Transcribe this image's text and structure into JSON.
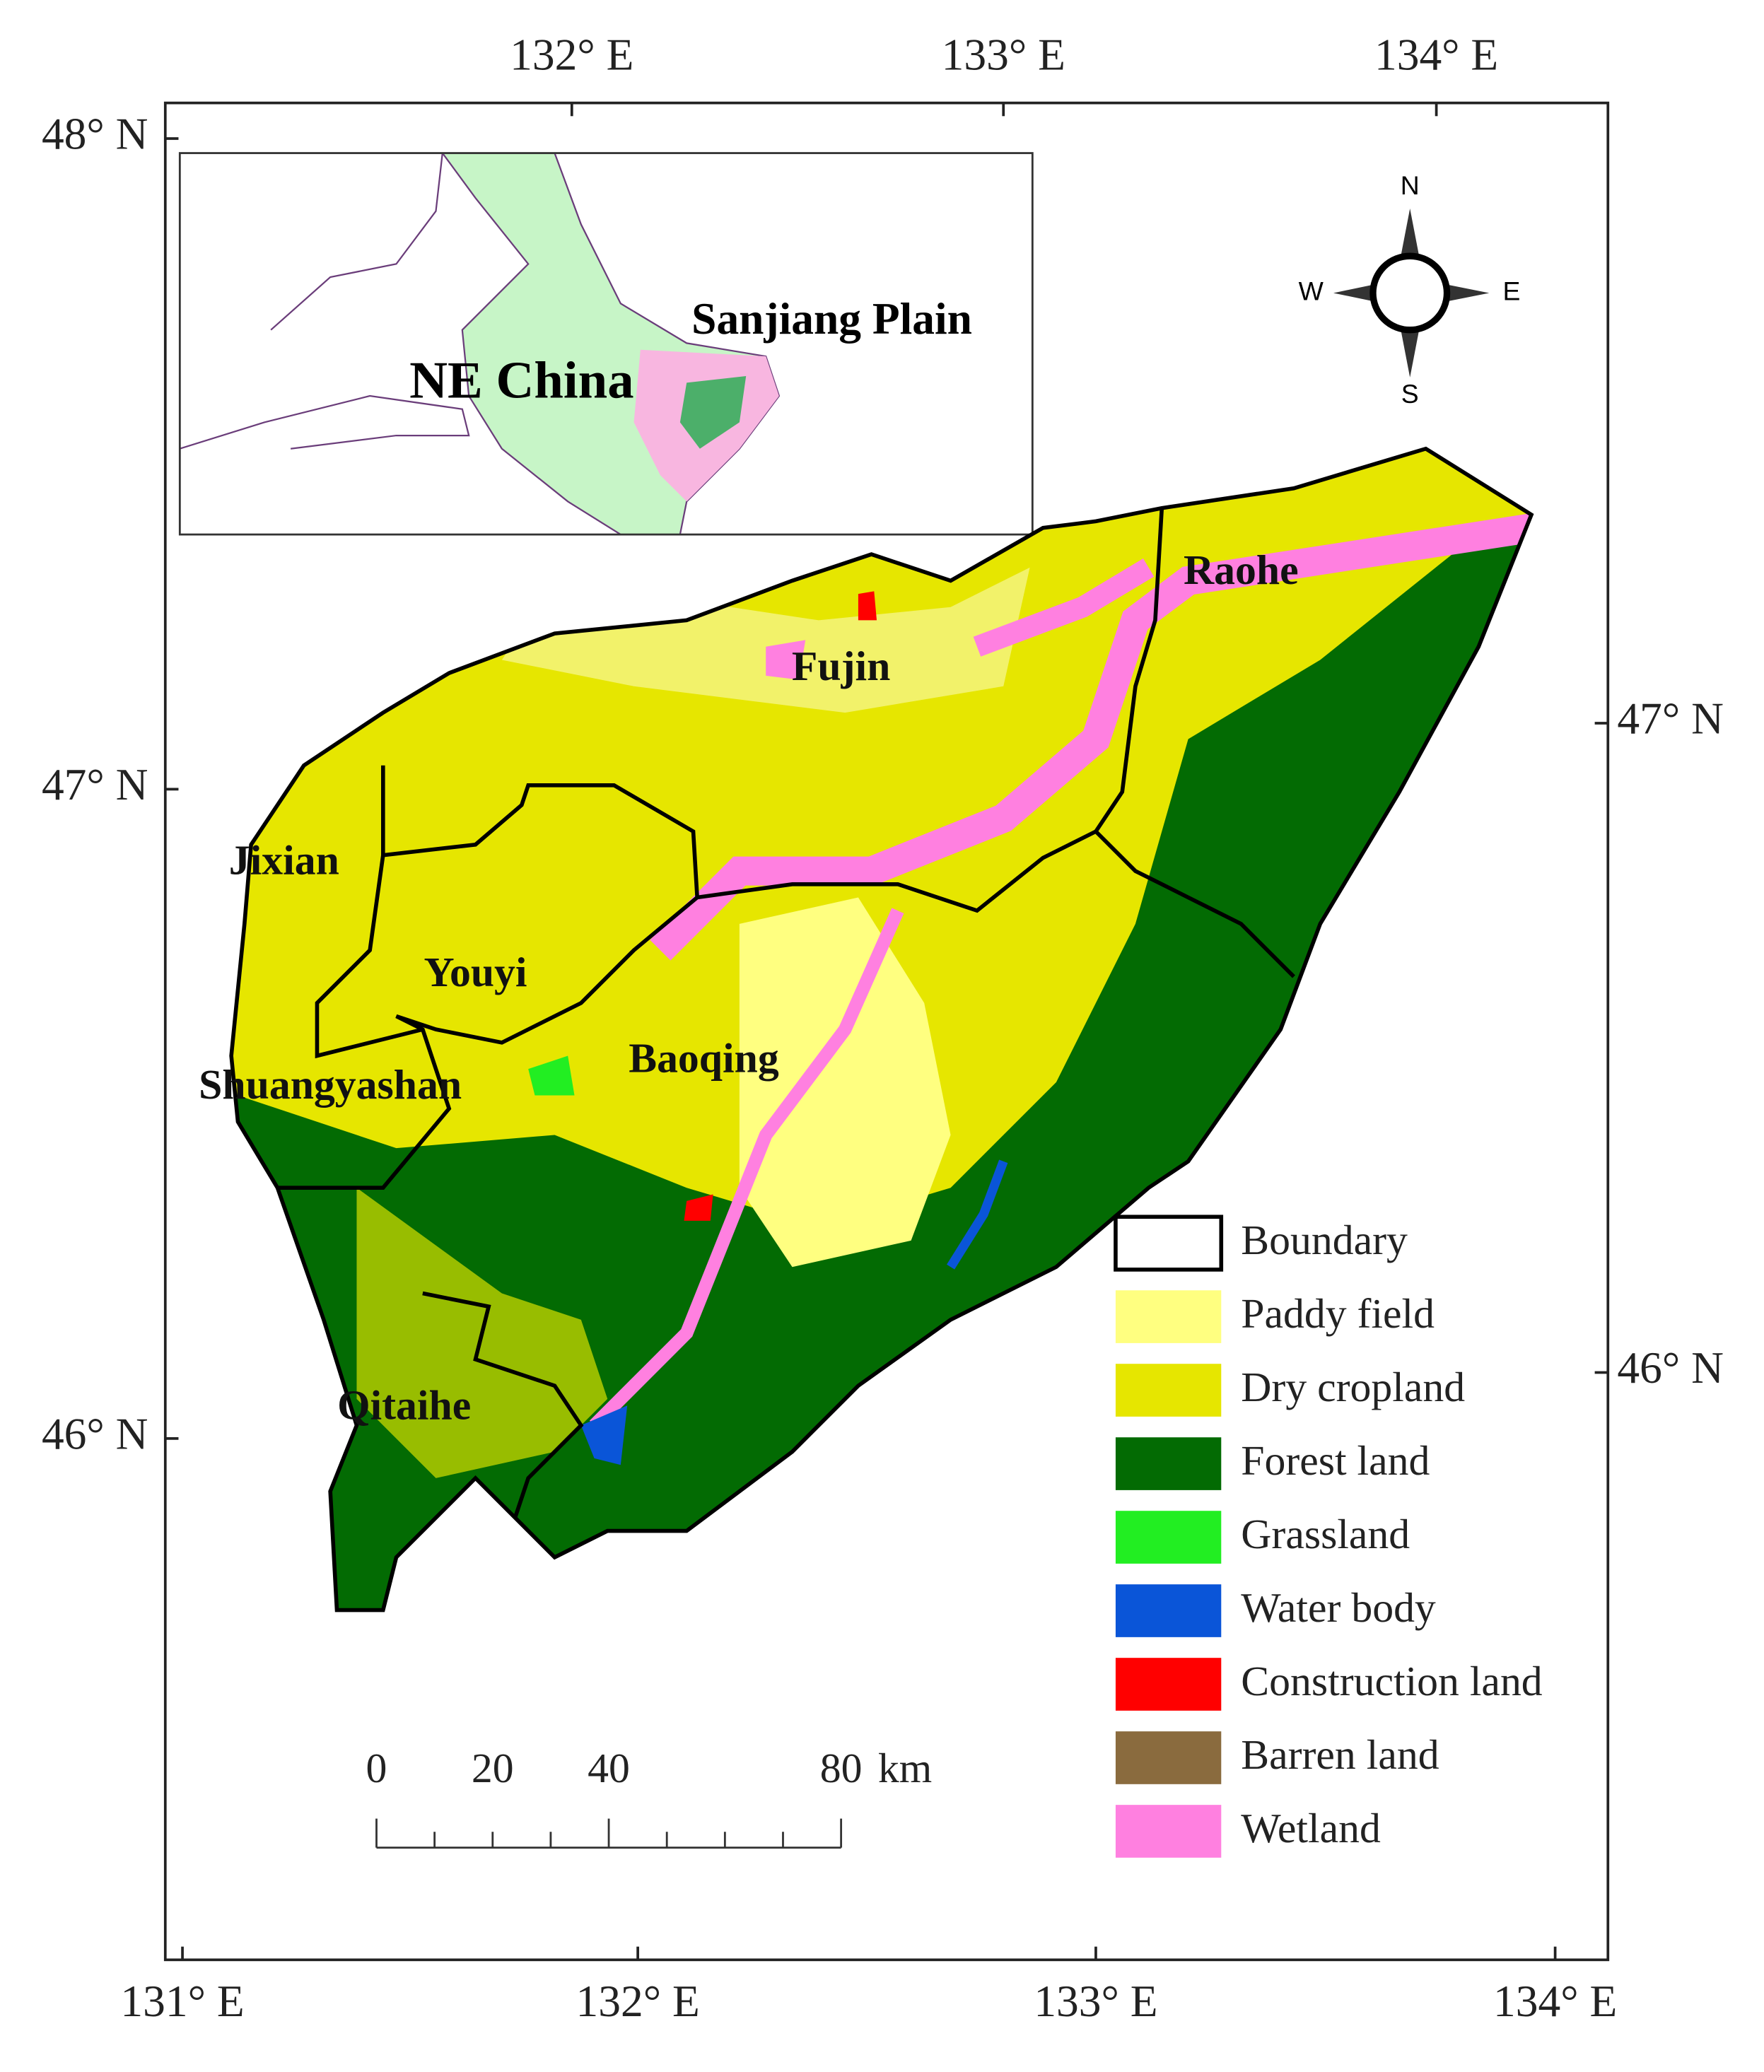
{
  "graticule": {
    "top": [
      "132° E",
      "133° E",
      "134° E"
    ],
    "bottom": [
      "131° E",
      "132° E",
      "133° E",
      "134° E"
    ],
    "left": [
      "48° N",
      "47° N",
      "46° N"
    ],
    "right": [
      "47° N",
      "46° N"
    ]
  },
  "inset": {
    "labels": [
      "Sanjiang Plain",
      "NE China"
    ]
  },
  "regions": [
    "Raohe",
    "Fujin",
    "Jixian",
    "Youyi",
    "Baoqing",
    "Shuangyashan",
    "Qitaihe"
  ],
  "compass": [
    "N",
    "S",
    "W",
    "E"
  ],
  "scale_bar": {
    "labels": [
      "0",
      "20",
      "40",
      "80"
    ],
    "unit": "km"
  },
  "legend": [
    {
      "label": "Boundary",
      "color": "#ffffff"
    },
    {
      "label": "Paddy field",
      "color": "#ffff80"
    },
    {
      "label": "Dry cropland",
      "color": "#e6e600"
    },
    {
      "label": "Forest land",
      "color": "#036b03"
    },
    {
      "label": "Grassland",
      "color": "#22ee22"
    },
    {
      "label": "Water body",
      "color": "#0a55d8"
    },
    {
      "label": "Construction land",
      "color": "#ff0000"
    },
    {
      "label": "Barren land",
      "color": "#8a6b3e"
    },
    {
      "label": "Wetland",
      "color": "#ff80e0"
    }
  ]
}
